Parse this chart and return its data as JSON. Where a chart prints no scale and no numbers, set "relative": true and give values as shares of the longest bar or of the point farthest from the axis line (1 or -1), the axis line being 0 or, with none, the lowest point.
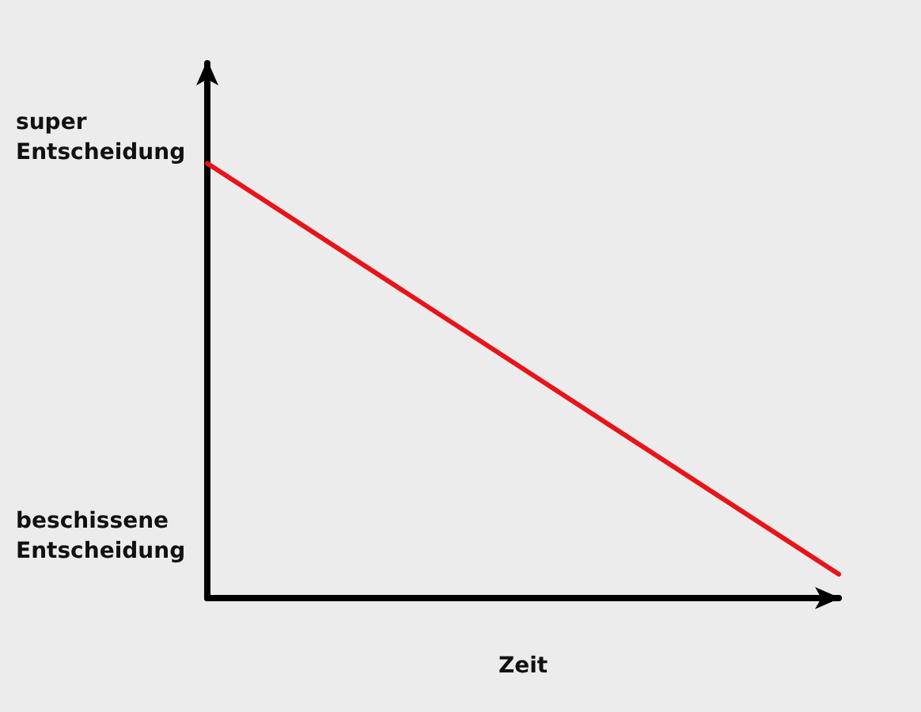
{
  "chart_data": {
    "type": "line",
    "relative": true,
    "xlabel": "Zeit",
    "annotations": [
      "super Entscheidung",
      "beschissene Entscheidung"
    ],
    "categories": [
      null,
      null
    ],
    "series": [
      {
        "color": "#e8141a",
        "values": [
          1,
          0.055
        ]
      }
    ],
    "grid": false,
    "marker": "none",
    "line_style": "solid"
  }
}
